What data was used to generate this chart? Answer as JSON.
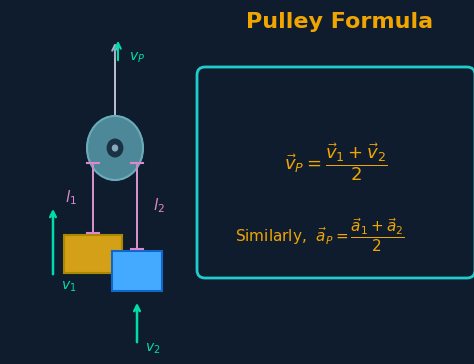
{
  "bg_color": "#0e1c2e",
  "title": "Pulley Formula",
  "title_color": "#f0a500",
  "title_fontsize": 16,
  "formula_box_color": "#20cccc",
  "formula_color": "#f0a500",
  "label_color_cyan": "#00ddaa",
  "label_color_magenta": "#dd88cc",
  "mass1_color": "#d4a017",
  "mass2_color": "#44aaff",
  "pulley_color": "#4d8899",
  "pulley_rim_color": "#6aabb8",
  "rope_color": "#ccccdd",
  "arrow_color_cyan": "#00ddaa",
  "support_arrow_color": "#aaaacc",
  "fig_w": 4.74,
  "fig_h": 3.64,
  "dpi": 100
}
